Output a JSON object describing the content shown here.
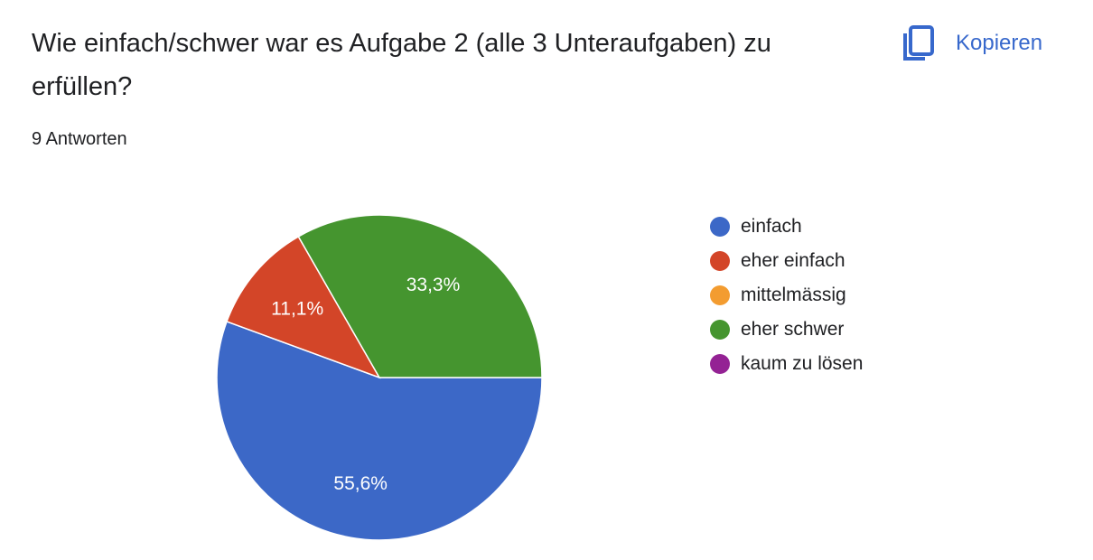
{
  "question": {
    "title": "Wie einfach/schwer war es Aufgabe 2 (alle 3 Unteraufgaben) zu erfüllen?",
    "responses": "9 Antworten"
  },
  "toolbar": {
    "copy_label": "Kopieren",
    "copy_icon": "copy-icon"
  },
  "colors": {
    "accent": "#3768cc"
  },
  "chart_data": {
    "type": "pie",
    "categories": [
      "einfach",
      "eher einfach",
      "mittelmässig",
      "eher schwer",
      "kaum zu lösen"
    ],
    "values": [
      55.6,
      11.1,
      0,
      33.3,
      0
    ],
    "labels": [
      "55,6%",
      "11,1%",
      "",
      "33,3%",
      ""
    ],
    "colors": [
      "#3c68c7",
      "#d34528",
      "#f39c30",
      "#45952f",
      "#942294"
    ],
    "start_angle_deg": 90,
    "direction": "clockwise",
    "legend_position": "right"
  }
}
